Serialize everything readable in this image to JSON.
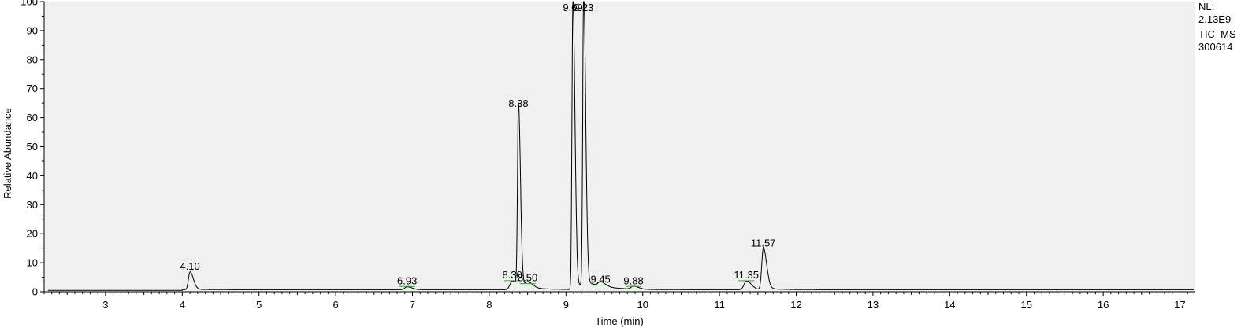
{
  "chart_data": {
    "type": "line",
    "title": "",
    "xlabel": "Time (min)",
    "ylabel": "Relative Abundance",
    "xlim": [
      2.2,
      17.2
    ],
    "ylim": [
      0,
      100
    ],
    "x_ticks": [
      "3",
      "4",
      "5",
      "6",
      "7",
      "8",
      "9",
      "10",
      "11",
      "12",
      "13",
      "14",
      "15",
      "16",
      "17"
    ],
    "y_ticks": [
      "0",
      "10",
      "20",
      "30",
      "40",
      "50",
      "60",
      "70",
      "80",
      "90",
      "100"
    ],
    "grid": false,
    "legend": "none",
    "colors": {
      "plot_background": "#f0f0f0",
      "trace": "#000000",
      "peak_marker": "#3c9a3c"
    },
    "peaks": [
      {
        "label": "4.10",
        "rt": 4.1,
        "height": 6
      },
      {
        "label": "6.93",
        "rt": 6.93,
        "height": 1
      },
      {
        "label": "8.30",
        "rt": 8.3,
        "height": 3
      },
      {
        "label": "8.38",
        "rt": 8.38,
        "height": 62
      },
      {
        "label": "8.50",
        "rt": 8.5,
        "height": 2
      },
      {
        "label": "9.09",
        "rt": 9.09,
        "height": 99
      },
      {
        "label": "9.23",
        "rt": 9.23,
        "height": 100
      },
      {
        "label": "9.45",
        "rt": 9.45,
        "height": 1.5
      },
      {
        "label": "9.88",
        "rt": 9.88,
        "height": 1
      },
      {
        "label": "11.35",
        "rt": 11.35,
        "height": 3
      },
      {
        "label": "11.57",
        "rt": 11.57,
        "height": 14
      }
    ],
    "info": {
      "nl_label": "NL:",
      "nl_value": "2.13E9",
      "trace_type": "TIC  MS",
      "sample": "300614"
    }
  }
}
